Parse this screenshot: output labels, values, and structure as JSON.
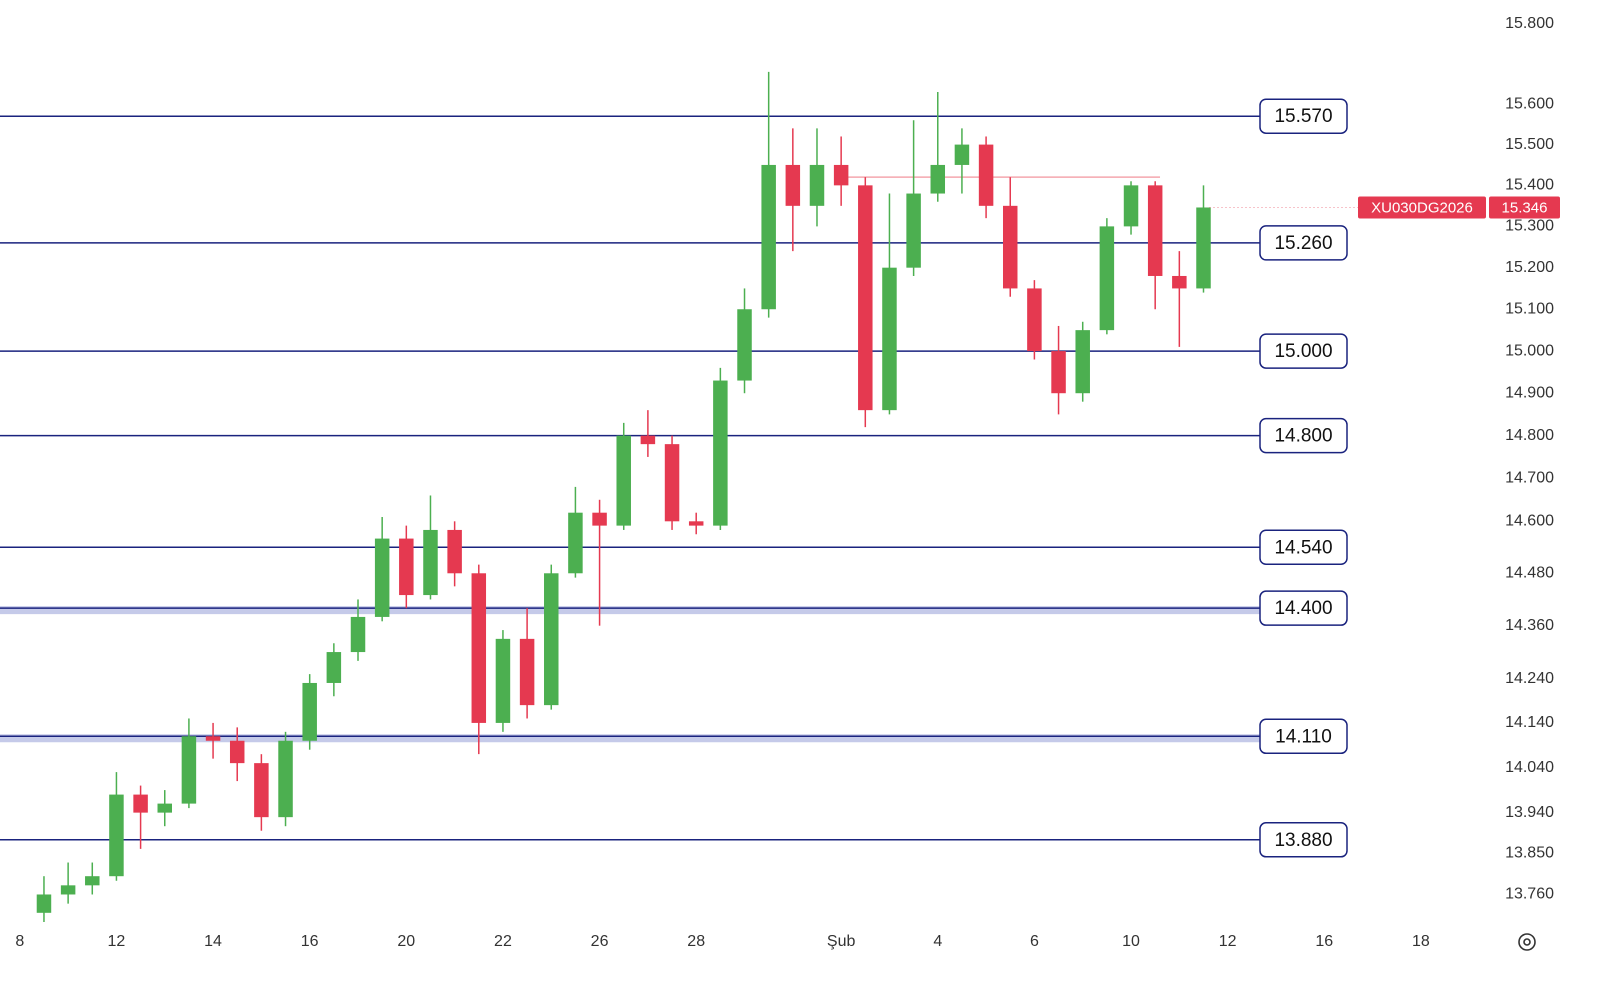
{
  "chart_data": {
    "type": "candlestick",
    "log_scale": true,
    "up_color": "#4caf50",
    "down_color": "#e53950",
    "x": [
      0.5,
      1,
      1.5,
      2,
      2.5,
      3,
      3.5,
      4,
      4.5,
      5,
      5.5,
      6,
      6.5,
      7,
      7.5,
      8,
      8.5,
      9,
      9.5,
      10,
      10.5,
      11,
      11.5,
      12,
      12.5,
      13,
      13.5,
      14,
      14.5,
      15,
      15.5,
      16,
      16.5,
      17,
      17.5,
      18,
      18.5,
      19,
      19.5,
      20,
      20.5,
      21,
      21.5,
      22,
      22.5,
      23,
      23.5,
      24,
      24.5
    ],
    "open": [
      13720,
      13760,
      13780,
      13800,
      13980,
      13940,
      13960,
      14110,
      14100,
      14050,
      13930,
      14100,
      14230,
      14300,
      14380,
      14560,
      14430,
      14580,
      14480,
      14140,
      14330,
      14180,
      14480,
      14620,
      14590,
      14800,
      14780,
      14600,
      14590,
      14930,
      15100,
      15450,
      15350,
      15450,
      15400,
      14860,
      15200,
      15380,
      15450,
      15500,
      15350,
      15150,
      15000,
      14900,
      15050,
      15300,
      15400,
      15180,
      15150
    ],
    "high": [
      13800,
      13830,
      13830,
      14030,
      14000,
      13990,
      14150,
      14140,
      14130,
      14070,
      14120,
      14250,
      14320,
      14420,
      14610,
      14590,
      14660,
      14600,
      14500,
      14350,
      14400,
      14500,
      14680,
      14650,
      14830,
      14860,
      14800,
      14620,
      14960,
      15150,
      15680,
      15540,
      15540,
      15520,
      15420,
      15380,
      15560,
      15630,
      15540,
      15520,
      15420,
      15170,
      15060,
      15070,
      15320,
      15410,
      15410,
      15240,
      15400
    ],
    "low": [
      13700,
      13740,
      13760,
      13790,
      13860,
      13910,
      13950,
      14060,
      14010,
      13900,
      13910,
      14080,
      14200,
      14280,
      14370,
      14400,
      14420,
      14450,
      14070,
      14120,
      14150,
      14170,
      14470,
      14360,
      14580,
      14750,
      14580,
      14570,
      14580,
      14900,
      15080,
      15240,
      15300,
      15350,
      14820,
      14850,
      15180,
      15360,
      15380,
      15320,
      15130,
      14980,
      14850,
      14880,
      15040,
      15280,
      15100,
      15010,
      15140
    ],
    "close": [
      13760,
      13780,
      13800,
      13980,
      13940,
      13960,
      14110,
      14100,
      14050,
      13930,
      14100,
      14230,
      14300,
      14380,
      14560,
      14430,
      14580,
      14480,
      14140,
      14330,
      14180,
      14480,
      14620,
      14590,
      14800,
      14780,
      14600,
      14590,
      14930,
      15100,
      15450,
      15350,
      15450,
      15400,
      14860,
      15200,
      15380,
      15450,
      15500,
      15350,
      15150,
      15000,
      14900,
      15050,
      15300,
      15400,
      15180,
      15150,
      15346
    ],
    "xlim": [
      -0.41,
      30.43
    ],
    "xticks": [
      {
        "value": 0,
        "label": "8"
      },
      {
        "value": 2,
        "label": "12"
      },
      {
        "value": 4,
        "label": "14"
      },
      {
        "value": 6,
        "label": "16"
      },
      {
        "value": 8,
        "label": "20"
      },
      {
        "value": 10,
        "label": "22"
      },
      {
        "value": 12,
        "label": "26"
      },
      {
        "value": 14,
        "label": "28"
      },
      {
        "value": 17,
        "label": "Şub"
      },
      {
        "value": 19,
        "label": "4"
      },
      {
        "value": 21,
        "label": "6"
      },
      {
        "value": 23,
        "label": "10"
      },
      {
        "value": 25,
        "label": "12"
      },
      {
        "value": 27,
        "label": "16"
      },
      {
        "value": 29,
        "label": "18"
      }
    ],
    "ylim": [
      13700,
      15860
    ],
    "yticks": [
      {
        "value": 15800,
        "label": "15.800"
      },
      {
        "value": 15600,
        "label": "15.600"
      },
      {
        "value": 15500,
        "label": "15.500"
      },
      {
        "value": 15400,
        "label": "15.400"
      },
      {
        "value": 15300,
        "label": "15.300"
      },
      {
        "value": 15200,
        "label": "15.200"
      },
      {
        "value": 15100,
        "label": "15.100"
      },
      {
        "value": 15000,
        "label": "15.000"
      },
      {
        "value": 14900,
        "label": "14.900"
      },
      {
        "value": 14800,
        "label": "14.800"
      },
      {
        "value": 14700,
        "label": "14.700"
      },
      {
        "value": 14600,
        "label": "14.600"
      },
      {
        "value": 14480,
        "label": "14.480"
      },
      {
        "value": 14360,
        "label": "14.360"
      },
      {
        "value": 14240,
        "label": "14.240"
      },
      {
        "value": 14140,
        "label": "14.140"
      },
      {
        "value": 14040,
        "label": "14.040"
      },
      {
        "value": 13940,
        "label": "13.940"
      },
      {
        "value": 13850,
        "label": "13.850"
      },
      {
        "value": 13760,
        "label": "13.760"
      }
    ],
    "levels": [
      {
        "value": 15570,
        "label": "15.570",
        "band": false
      },
      {
        "value": 15260,
        "label": "15.260",
        "band": false
      },
      {
        "value": 15000,
        "label": "15.000",
        "band": false
      },
      {
        "value": 14800,
        "label": "14.800",
        "band": false
      },
      {
        "value": 14540,
        "label": "14.540",
        "band": false
      },
      {
        "value": 14400,
        "label": "14.400",
        "band": true
      },
      {
        "value": 14110,
        "label": "14.110",
        "band": true
      },
      {
        "value": 13880,
        "label": "13.880",
        "band": false
      }
    ],
    "level_color": "#1a237e",
    "resistance_line": {
      "value": 15420,
      "from_x": 16.9,
      "to_x": 23.6,
      "color": "#f4a6ae"
    },
    "last_price": {
      "symbol": "XU030DG2026",
      "value": 15346,
      "label": "15.346",
      "color": "#e53950"
    }
  }
}
